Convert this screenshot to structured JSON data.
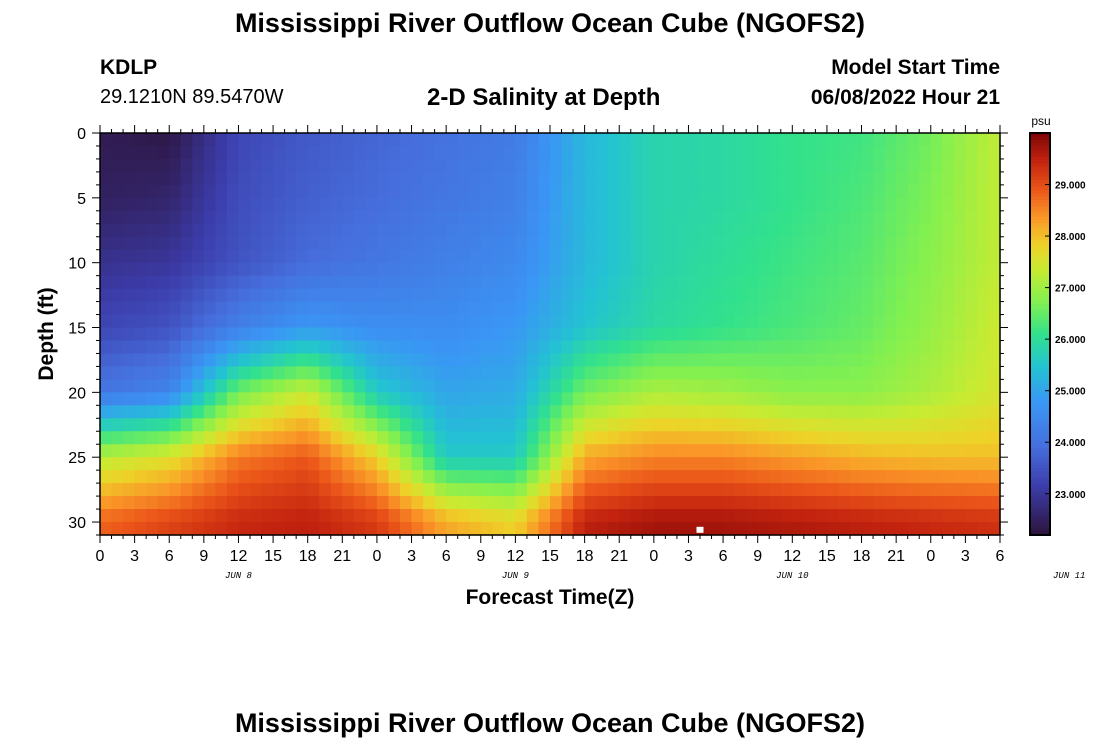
{
  "page": {
    "title": "Mississippi River Outflow Ocean Cube (NGOFS2)",
    "bottom_title": "Mississippi River Outflow Ocean Cube (NGOFS2)",
    "station_id": "KDLP",
    "station_coords": "29.1210N  89.5470W",
    "plot_subtitle": "2-D Salinity at Depth",
    "model_start_label": "Model Start Time",
    "model_start_value": "06/08/2022 Hour 21"
  },
  "chart_data": {
    "type": "heatmap",
    "title": "2-D Salinity at Depth",
    "xlabel": "Forecast Time(Z)",
    "ylabel": "Depth (ft)",
    "x_ticks": [
      "0",
      "3",
      "6",
      "9",
      "12",
      "15",
      "18",
      "21",
      "0",
      "3",
      "6",
      "9",
      "12",
      "15",
      "18",
      "21",
      "0",
      "3",
      "6",
      "9",
      "12",
      "15",
      "18",
      "21",
      "0",
      "3",
      "6"
    ],
    "date_labels": [
      {
        "label": "JUN 8",
        "hour": 12
      },
      {
        "label": "JUN 9",
        "hour": 36
      },
      {
        "label": "JUN 10",
        "hour": 60
      },
      {
        "label": "JUN 11",
        "hour": 84
      }
    ],
    "x_range_hours": [
      0,
      78
    ],
    "y_ticks": [
      0,
      5,
      10,
      15,
      20,
      25,
      30
    ],
    "y_range_ft": [
      0,
      31
    ],
    "colorbar": {
      "unit": "psu",
      "ticks": [
        "23.000",
        "24.000",
        "25.000",
        "26.000",
        "27.000",
        "28.000",
        "29.000"
      ],
      "range": [
        22.2,
        30.0
      ]
    },
    "salinity_grid_psu": {
      "hours": [
        0,
        6,
        12,
        18,
        24,
        30,
        36,
        42,
        48,
        54,
        60,
        66,
        72,
        78
      ],
      "depths_ft": [
        0,
        5,
        10,
        15,
        20,
        25,
        30
      ],
      "values": [
        [
          22.4,
          22.3,
          23.3,
          23.6,
          23.8,
          24.0,
          24.2,
          25.3,
          25.8,
          25.9,
          26.1,
          26.2,
          26.6,
          27.3
        ],
        [
          22.5,
          22.6,
          23.4,
          23.7,
          23.9,
          24.1,
          24.3,
          25.3,
          25.8,
          25.9,
          26.1,
          26.3,
          26.7,
          27.3
        ],
        [
          22.9,
          23.0,
          23.5,
          23.9,
          24.1,
          24.3,
          24.5,
          25.3,
          25.8,
          26.0,
          26.2,
          26.4,
          26.8,
          27.3
        ],
        [
          23.3,
          23.5,
          24.3,
          24.8,
          24.6,
          24.6,
          24.8,
          25.5,
          25.9,
          26.1,
          26.3,
          26.5,
          26.9,
          27.4
        ],
        [
          24.1,
          24.4,
          26.6,
          27.4,
          25.6,
          25.0,
          25.1,
          26.6,
          27.1,
          27.0,
          26.8,
          26.8,
          27.1,
          27.5
        ],
        [
          27.2,
          27.6,
          28.6,
          28.9,
          27.8,
          25.6,
          25.6,
          28.2,
          28.5,
          28.5,
          28.3,
          28.1,
          28.0,
          28.0
        ],
        [
          28.8,
          29.1,
          29.4,
          29.5,
          29.2,
          28.2,
          27.8,
          29.5,
          29.7,
          29.7,
          29.6,
          29.5,
          29.4,
          29.3
        ]
      ]
    },
    "marker": {
      "hour": 52,
      "depth_ft": 30.6
    }
  }
}
